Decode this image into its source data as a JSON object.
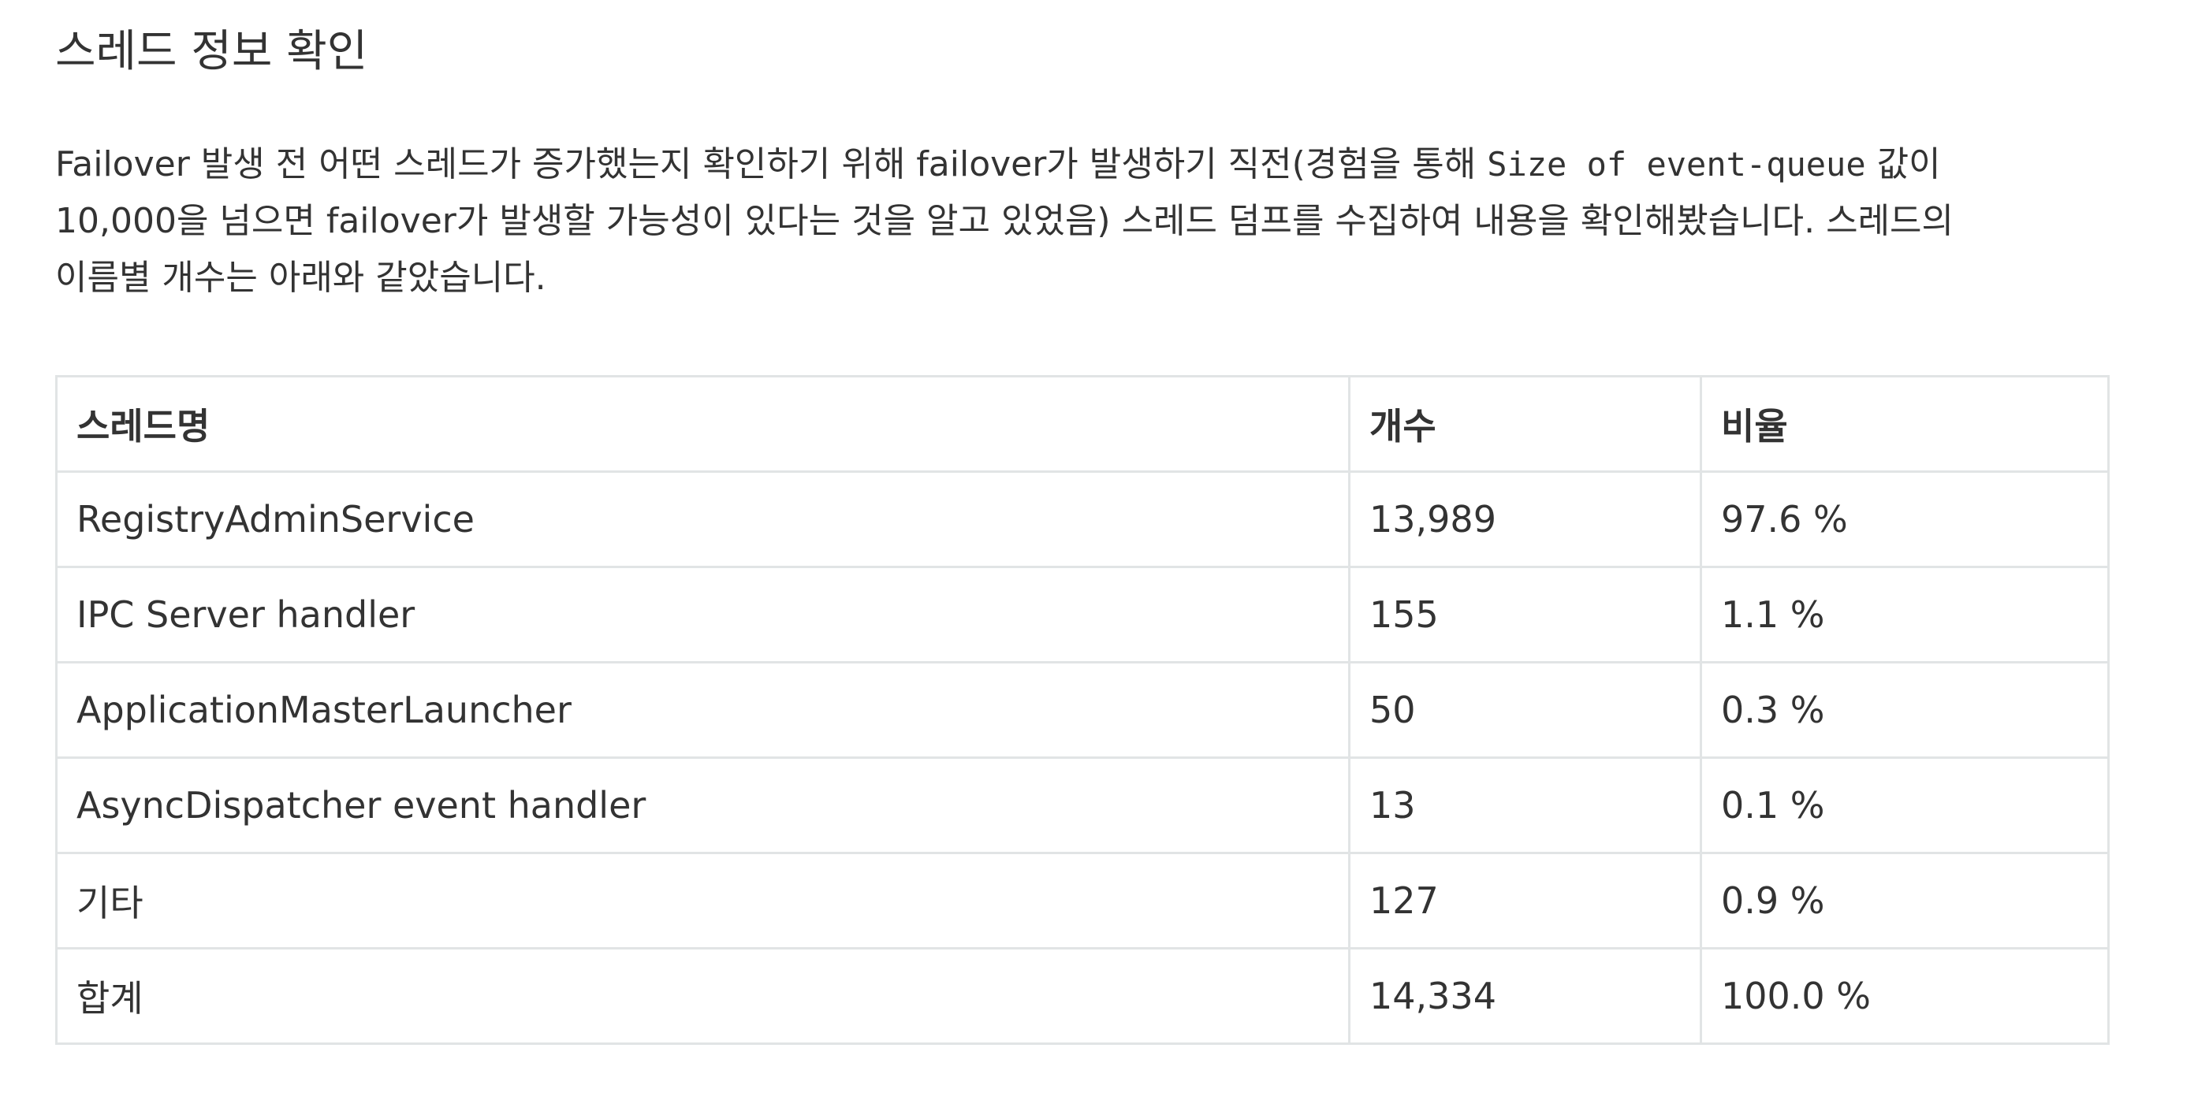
{
  "heading": "스레드 정보 확인",
  "paragraph": {
    "line1_before_code": "Failover 발생 전 어떤 스레드가 증가했는지 확인하기 위해 failover가 발생하기 직전(경험을 통해 ",
    "line1_code": "Size of event-queue",
    "line1_after_code": " 값이",
    "line2": "10,000을 넘으면 failover가 발생할 가능성이 있다는 것을 알고 있었음) 스레드 덤프를 수집하여 내용을 확인해봤습니다. 스레드의",
    "line3": "이름별 개수는 아래와 같았습니다."
  },
  "table": {
    "headers": [
      "스레드명",
      "개수",
      "비율"
    ],
    "rows": [
      [
        "RegistryAdminService",
        "13,989",
        "97.6 %"
      ],
      [
        "IPC Server handler",
        "155",
        "1.1 %"
      ],
      [
        "ApplicationMasterLauncher",
        "50",
        "0.3 %"
      ],
      [
        "AsyncDispatcher event handler",
        "13",
        "0.1 %"
      ],
      [
        "기타",
        "127",
        "0.9 %"
      ],
      [
        "합계",
        "14,334",
        "100.0 %"
      ]
    ]
  }
}
